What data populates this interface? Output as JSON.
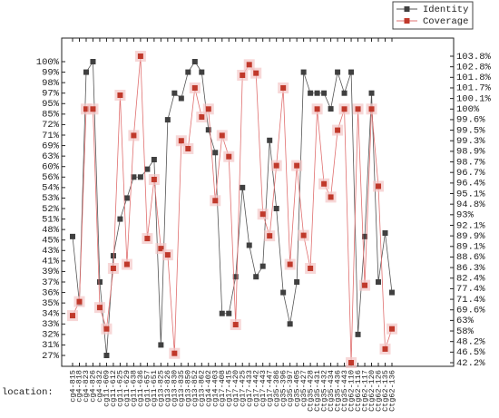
{
  "chart_data": {
    "type": "line",
    "x_label": "location:",
    "categories": [
      "cg4-815",
      "cg4-818",
      "cg4-823",
      "cg4-826",
      "cg4-832",
      "cg11-609",
      "cg11-612",
      "cg11-625",
      "cg11-629",
      "cg11-638",
      "cg11-636",
      "cg11-657",
      "cg11-651",
      "cg13-825",
      "cg13-826",
      "cg13-830",
      "cg13-835",
      "cg13-850",
      "cg13-852",
      "cg13-862",
      "cg14-402",
      "cg14-403",
      "cg17-408",
      "cg17-415",
      "cg17-420",
      "cg17-425",
      "cg17-433",
      "cg17-442",
      "cg17-443",
      "cg17-447",
      "cg35-386",
      "cg35-396",
      "cg35-397",
      "cg35-405",
      "cg35-427",
      "Ctg35-428",
      "Ctg35-431",
      "Ctg35-432",
      "Ctg35-434",
      "Ctg35-436",
      "Ctg35-443",
      "Ctg62-110",
      "Ctg62-116",
      "Ctg62-117",
      "Ctg62-120",
      "Ctg62-126",
      "Ctg62-135",
      "Ctg62-136"
    ],
    "series": [
      {
        "name": "Identity",
        "color": "#404040",
        "line_color": "#555555",
        "values": [
          46,
          35,
          99,
          100,
          37,
          27,
          42,
          51,
          53,
          56,
          56,
          59,
          62,
          31,
          78,
          97,
          96,
          99,
          100,
          99,
          71.5,
          65,
          34,
          34,
          38,
          54,
          44,
          38,
          40,
          70,
          52,
          36,
          33,
          37,
          99,
          97,
          97,
          97,
          90,
          99,
          97,
          99,
          32,
          46,
          97,
          37,
          47,
          36
        ]
      },
      {
        "name": "Coverage",
        "color": "#c0392b",
        "line_color": "#e07070",
        "axis": "y2",
        "values": [
          66,
          71,
          100,
          100,
          70,
          59,
          86,
          100.6,
          87,
          99.4,
          103.8,
          89.7,
          96.5,
          89,
          88.7,
          46,
          99.3,
          99,
          101.7,
          99.7,
          100,
          94.9,
          99.4,
          98.8,
          61,
          102,
          103,
          102.2,
          93.1,
          89.9,
          98,
          101.7,
          87,
          98,
          90,
          86,
          100,
          96.3,
          95,
          99.5,
          100,
          42.2,
          100,
          79,
          100,
          96,
          47,
          59
        ]
      }
    ],
    "ylim": [
      27,
      100
    ],
    "yticks": [
      {
        "value": 27,
        "label": "27%"
      },
      {
        "value": 31,
        "label": "31%"
      },
      {
        "value": 32,
        "label": "32%"
      },
      {
        "value": 33,
        "label": "33%"
      },
      {
        "value": 34,
        "label": "34%"
      },
      {
        "value": 35,
        "label": "35%"
      },
      {
        "value": 36,
        "label": "36%"
      },
      {
        "value": 37,
        "label": "37%"
      },
      {
        "value": 39,
        "label": "39%"
      },
      {
        "value": 41,
        "label": "41%"
      },
      {
        "value": 43,
        "label": "43%"
      },
      {
        "value": 45,
        "label": "45%"
      },
      {
        "value": 48,
        "label": "48%"
      },
      {
        "value": 51,
        "label": "51%"
      },
      {
        "value": 52,
        "label": "52%"
      },
      {
        "value": 53,
        "label": "53%"
      },
      {
        "value": 54,
        "label": "54%"
      },
      {
        "value": 56,
        "label": "56%"
      },
      {
        "value": 60,
        "label": "60%"
      },
      {
        "value": 63,
        "label": "63%"
      },
      {
        "value": 69,
        "label": "69%"
      },
      {
        "value": 71,
        "label": "71%"
      },
      {
        "value": 72,
        "label": "72%"
      },
      {
        "value": 85,
        "label": "85%"
      },
      {
        "value": 95,
        "label": "95%"
      },
      {
        "value": 97,
        "label": "97%"
      },
      {
        "value": 98,
        "label": "98%"
      },
      {
        "value": 99,
        "label": "99%"
      },
      {
        "value": 100,
        "label": "100%"
      }
    ],
    "y2lim": [
      42.2,
      103.8
    ],
    "y2ticks": [
      {
        "value": 42.2,
        "label": "42.2%"
      },
      {
        "value": 46.5,
        "label": "46.5%"
      },
      {
        "value": 48.2,
        "label": "48.2%"
      },
      {
        "value": 58,
        "label": "58%"
      },
      {
        "value": 63,
        "label": "63%"
      },
      {
        "value": 69.6,
        "label": "69.6%"
      },
      {
        "value": 71.4,
        "label": "71.4%"
      },
      {
        "value": 77.4,
        "label": "77.4%"
      },
      {
        "value": 82.4,
        "label": "82.4%"
      },
      {
        "value": 86.3,
        "label": "86.3%"
      },
      {
        "value": 88.6,
        "label": "88.6%"
      },
      {
        "value": 89.1,
        "label": "89.1%"
      },
      {
        "value": 89.9,
        "label": "89.9%"
      },
      {
        "value": 92.1,
        "label": "92.1%"
      },
      {
        "value": 93,
        "label": "93%"
      },
      {
        "value": 94.8,
        "label": "94.8%"
      },
      {
        "value": 95.1,
        "label": "95.1%"
      },
      {
        "value": 96.4,
        "label": "96.4%"
      },
      {
        "value": 96.7,
        "label": "96.7%"
      },
      {
        "value": 98.7,
        "label": "98.7%"
      },
      {
        "value": 98.9,
        "label": "98.9%"
      },
      {
        "value": 99.3,
        "label": "99.3%"
      },
      {
        "value": 99.5,
        "label": "99.5%"
      },
      {
        "value": 99.6,
        "label": "99.6%"
      },
      {
        "value": 100,
        "label": "100%"
      },
      {
        "value": 100.1,
        "label": "100.1%"
      },
      {
        "value": 101.7,
        "label": "101.7%"
      },
      {
        "value": 101.8,
        "label": "101.8%"
      },
      {
        "value": 102.8,
        "label": "102.8%"
      },
      {
        "value": 103.8,
        "label": "103.8%"
      }
    ],
    "legend": "upper right"
  }
}
